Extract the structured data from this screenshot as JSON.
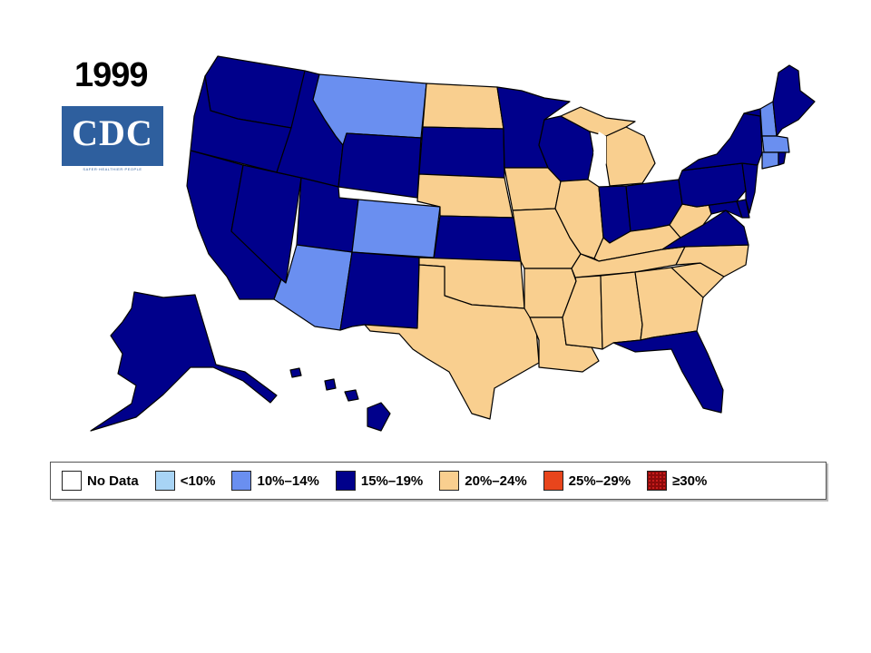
{
  "title": "1999",
  "logo": {
    "text": "CDC",
    "tagline": "SAFER·HEALTHIER·PEOPLE"
  },
  "colors": {
    "no_data": "#ffffff",
    "lt10": "#a8d4f5",
    "r10_14": "#6a8ff0",
    "r15_19": "#00008b",
    "r20_24": "#f9cf8f",
    "r25_29": "#e8451c",
    "ge30": "#8b0a0a",
    "border": "#000000"
  },
  "legend": [
    {
      "key": "no_data",
      "label": "No Data"
    },
    {
      "key": "lt10",
      "label": "<10%"
    },
    {
      "key": "r10_14",
      "label": "10%–14%"
    },
    {
      "key": "r15_19",
      "label": "15%–19%"
    },
    {
      "key": "r20_24",
      "label": "20%–24%"
    },
    {
      "key": "r25_29",
      "label": "25%–29%"
    },
    {
      "key": "ge30",
      "label": "≥30%"
    }
  ],
  "states": {
    "WA": "r15_19",
    "OR": "r15_19",
    "CA": "r15_19",
    "NV": "r15_19",
    "ID": "r15_19",
    "MT": "r10_14",
    "WY": "r15_19",
    "UT": "r15_19",
    "AZ": "r10_14",
    "CO": "r10_14",
    "NM": "r15_19",
    "ND": "r20_24",
    "SD": "r15_19",
    "NE": "r20_24",
    "KS": "r15_19",
    "OK": "r20_24",
    "TX": "r20_24",
    "MN": "r15_19",
    "IA": "r20_24",
    "MO": "r20_24",
    "AR": "r20_24",
    "LA": "r20_24",
    "WI": "r15_19",
    "IL": "r20_24",
    "MI": "r20_24",
    "IN": "r15_19",
    "OH": "r15_19",
    "KY": "r20_24",
    "TN": "r20_24",
    "MS": "r20_24",
    "AL": "r20_24",
    "GA": "r20_24",
    "FL": "r15_19",
    "SC": "r20_24",
    "NC": "r20_24",
    "VA": "r15_19",
    "WV": "r20_24",
    "MD": "r15_19",
    "DE": "r15_19",
    "NJ": "r15_19",
    "PA": "r15_19",
    "NY": "r15_19",
    "CT": "r10_14",
    "RI": "r15_19",
    "MA": "r10_14",
    "VT": "r15_19",
    "NH": "r10_14",
    "ME": "r15_19",
    "AK": "r15_19",
    "HI": "r15_19"
  }
}
